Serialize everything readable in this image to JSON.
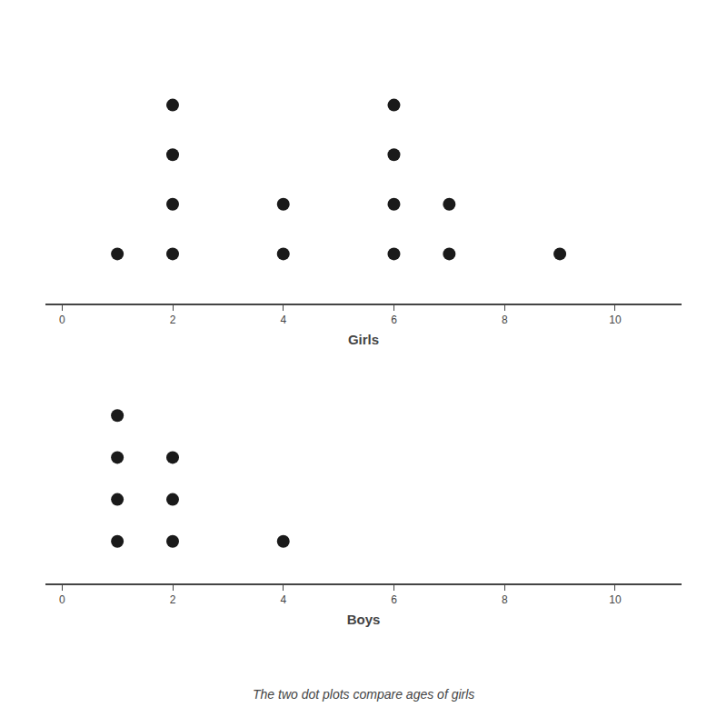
{
  "chart_data": [
    {
      "type": "dot",
      "x": [
        1,
        2,
        4,
        6,
        7,
        9
      ],
      "values": [
        1,
        4,
        2,
        4,
        2,
        1
      ],
      "xlabel": "Girls",
      "xlim": [
        -0.3,
        11.2
      ],
      "xticks": [
        0,
        2,
        4,
        6,
        8,
        10
      ],
      "ylim": [
        0,
        5
      ],
      "color": "#1a1a1a",
      "tick_labels": "x",
      "grid": false
    },
    {
      "type": "dot",
      "x": [
        1,
        2,
        4
      ],
      "values": [
        4,
        3,
        1
      ],
      "xlabel": "Boys",
      "xlim": [
        -0.3,
        11.2
      ],
      "xticks": [
        0,
        2,
        4,
        6,
        8,
        10
      ],
      "ylim": [
        0,
        5
      ],
      "color": "#1a1a1a",
      "tick_labels": "x",
      "grid": false,
      "annotations": [
        "The two dot plots compare ages of girls"
      ]
    }
  ]
}
